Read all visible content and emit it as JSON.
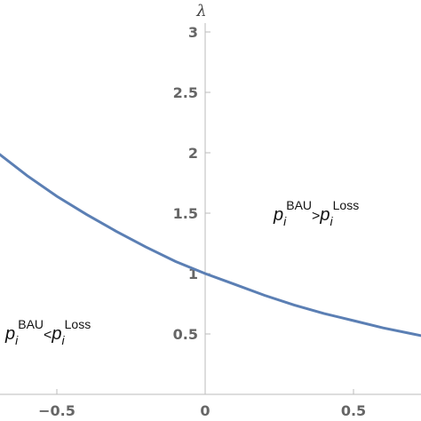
{
  "chart_data": {
    "type": "line",
    "title": "",
    "xlabel": "",
    "ylabel": "λ",
    "xlim": [
      -0.7,
      0.74
    ],
    "ylim": [
      0,
      3
    ],
    "x_ticks": [
      -0.5,
      0,
      0.5
    ],
    "x_tick_labels": [
      "−0.5",
      "0",
      "0.5"
    ],
    "y_ticks": [
      0.5,
      1,
      1.5,
      2,
      2.5,
      3
    ],
    "y_tick_labels": [
      "0.5",
      "1",
      "1.5",
      "2",
      "2.5",
      "3"
    ],
    "grid": false,
    "series": [
      {
        "color": "#5b7fb4",
        "x": [
          -0.7,
          -0.6,
          -0.5,
          -0.4,
          -0.3,
          -0.2,
          -0.1,
          0,
          0.1,
          0.2,
          0.3,
          0.4,
          0.5,
          0.6,
          0.7,
          0.74
        ],
        "y": [
          2.0,
          1.81,
          1.64,
          1.49,
          1.35,
          1.22,
          1.1,
          1.0,
          0.91,
          0.82,
          0.74,
          0.67,
          0.61,
          0.55,
          0.5,
          0.48
        ]
      }
    ],
    "annotations": [
      {
        "base": "p",
        "sub": "i",
        "sup1": "BAU",
        "rel": ">",
        "base2": "p",
        "sub2": "i",
        "sup2": "Loss"
      },
      {
        "base": "p",
        "sub": "i",
        "sup1": "BAU",
        "rel": "<",
        "base2": "p",
        "sub2": "i",
        "sup2": "Loss"
      }
    ]
  }
}
